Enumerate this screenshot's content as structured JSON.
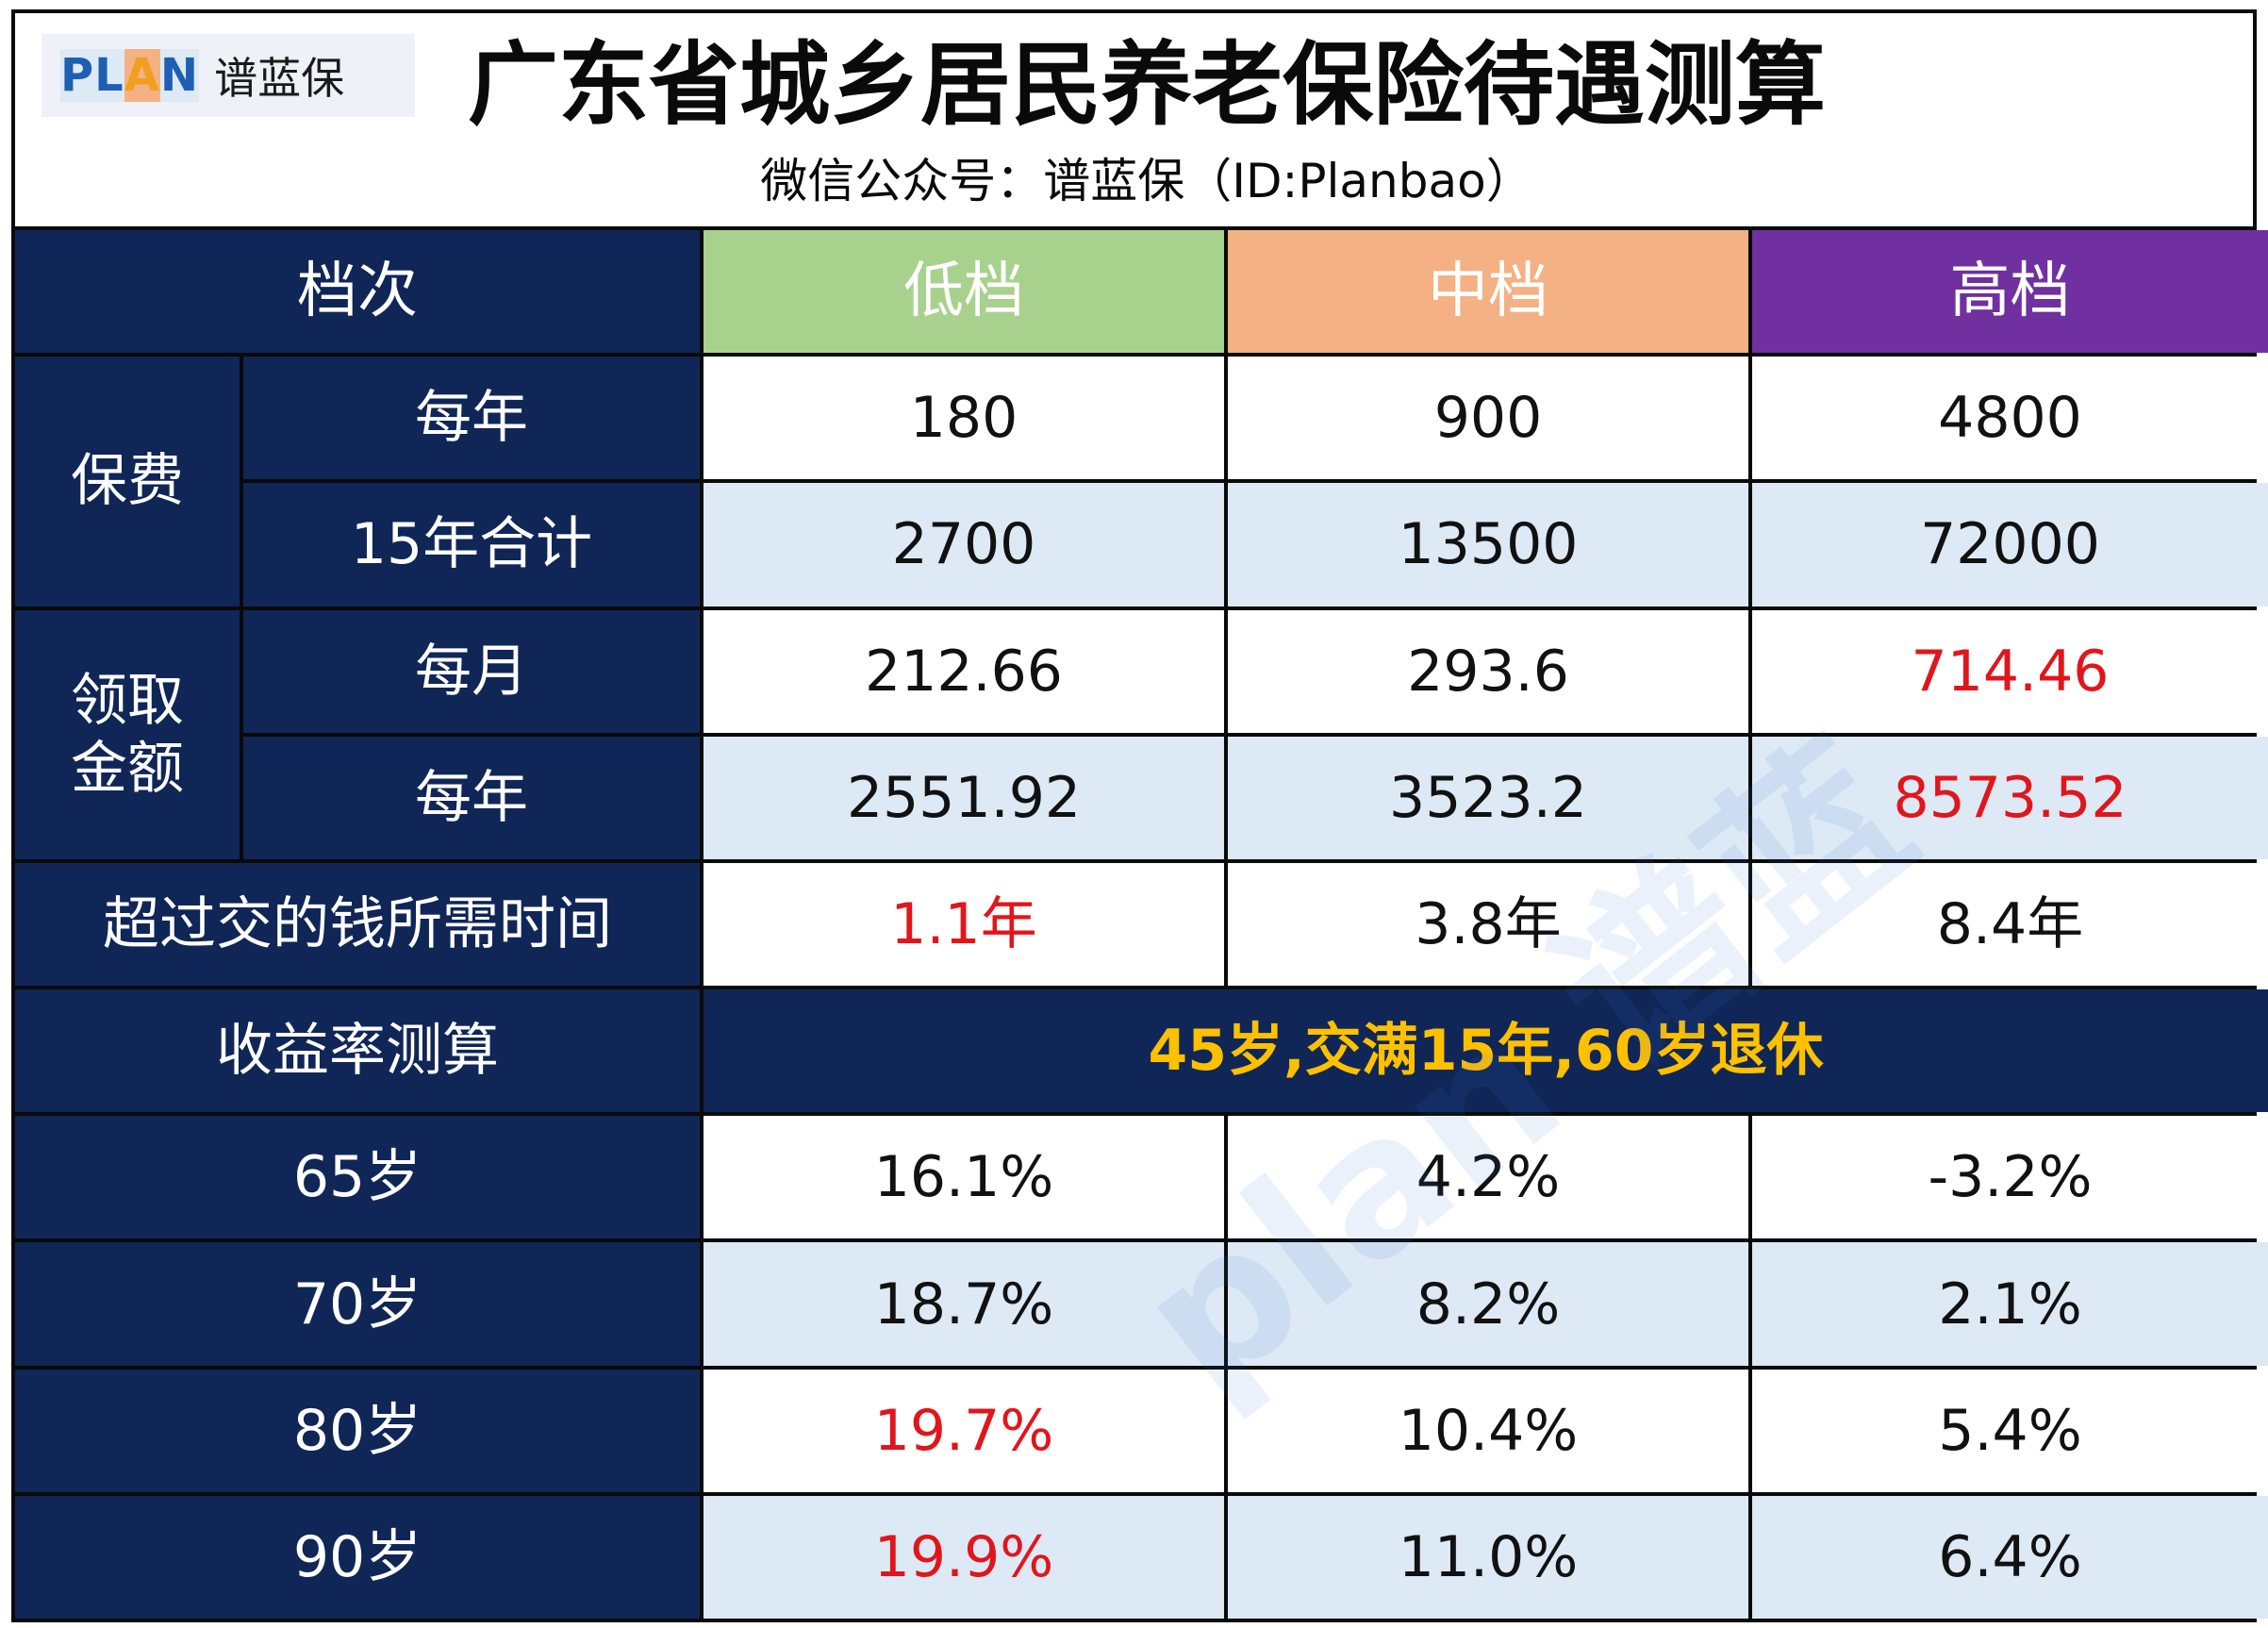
{
  "header": {
    "logo_word_part1": "PL",
    "logo_word_part2": "A",
    "logo_word_part3": "N",
    "logo_cn": "谱蓝保",
    "title": "广东省城乡居民养老保险待遇测算",
    "subtitle": "微信公众号：谱蓝保（ID:Planbao）"
  },
  "watermark": "plan 谱蓝",
  "colors": {
    "navy": "#0f2657",
    "low_tier": "#a9d18e",
    "mid_tier": "#f4b183",
    "high_tier": "#7030a0",
    "alt_row": "#dde9f5",
    "highlight_red": "#e0161c",
    "highlight_gold": "#ffc000"
  },
  "table": {
    "tier_label": "档次",
    "tiers": [
      "低档",
      "中档",
      "高档"
    ],
    "premium_group": "保费",
    "premium_rows": [
      {
        "label": "每年",
        "values": [
          "180",
          "900",
          "4800"
        ]
      },
      {
        "label": "15年合计",
        "values": [
          "2700",
          "13500",
          "72000"
        ]
      }
    ],
    "payout_group": "领取\n金额",
    "payout_group_line1": "领取",
    "payout_group_line2": "金额",
    "payout_rows": [
      {
        "label": "每月",
        "values": [
          "212.66",
          "293.6",
          "714.46"
        ]
      },
      {
        "label": "每年",
        "values": [
          "2551.92",
          "3523.2",
          "8573.52"
        ]
      }
    ],
    "breakeven": {
      "label": "超过交的钱所需时间",
      "values": [
        "1.1年",
        "3.8年",
        "8.4年"
      ]
    },
    "yield_label": "收益率测算",
    "yield_condition": "45岁,交满15年,60岁退休",
    "yield_rows": [
      {
        "label": "65岁",
        "values": [
          "16.1%",
          "4.2%",
          "-3.2%"
        ]
      },
      {
        "label": "70岁",
        "values": [
          "18.7%",
          "8.2%",
          "2.1%"
        ]
      },
      {
        "label": "80岁",
        "values": [
          "19.7%",
          "10.4%",
          "5.4%"
        ]
      },
      {
        "label": "90岁",
        "values": [
          "19.9%",
          "11.0%",
          "6.4%"
        ]
      }
    ]
  }
}
